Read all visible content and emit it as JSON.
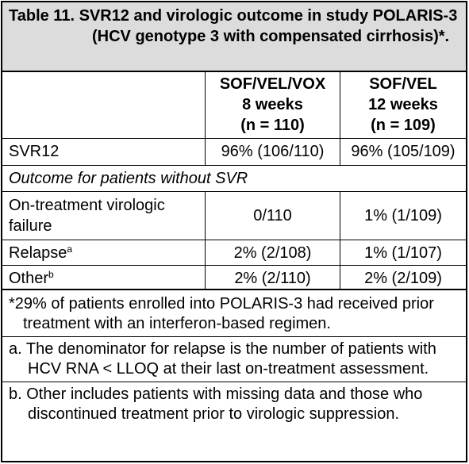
{
  "title": "Table 11. SVR12 and virologic outcome in study POLARIS-3 (HCV genotype 3 with compensated cirrhosis)*.",
  "columns": [
    {
      "line1": "SOF/VEL/VOX",
      "line2": "8 weeks",
      "line3": "(n = 110)"
    },
    {
      "line1": "SOF/VEL",
      "line2": "12 weeks",
      "line3": "(n = 109)"
    }
  ],
  "rows": {
    "svr12": {
      "label": "SVR12",
      "values": [
        "96% (106/110)",
        "96% (105/109)"
      ]
    },
    "section_label": "Outcome for patients without SVR",
    "on_treatment": {
      "label": "On-treatment virologic failure",
      "values": [
        "0/110",
        "1% (1/109)"
      ]
    },
    "relapse": {
      "label": "Relapse",
      "sup": "a",
      "values": [
        "2% (2/108)",
        "1% (1/107)"
      ]
    },
    "other": {
      "label": "Other",
      "sup": "b",
      "values": [
        "2% (2/110)",
        "2% (2/109)"
      ]
    }
  },
  "footnotes": {
    "star": "*29% of patients enrolled into POLARIS-3 had received prior treatment with an interferon-based regimen.",
    "a": "a. The denominator for relapse is the number of patients with HCV RNA < LLOQ at their last on-treatment assessment.",
    "b": "b. Other includes patients with missing data and those who discontinued treatment prior to virologic suppression."
  }
}
